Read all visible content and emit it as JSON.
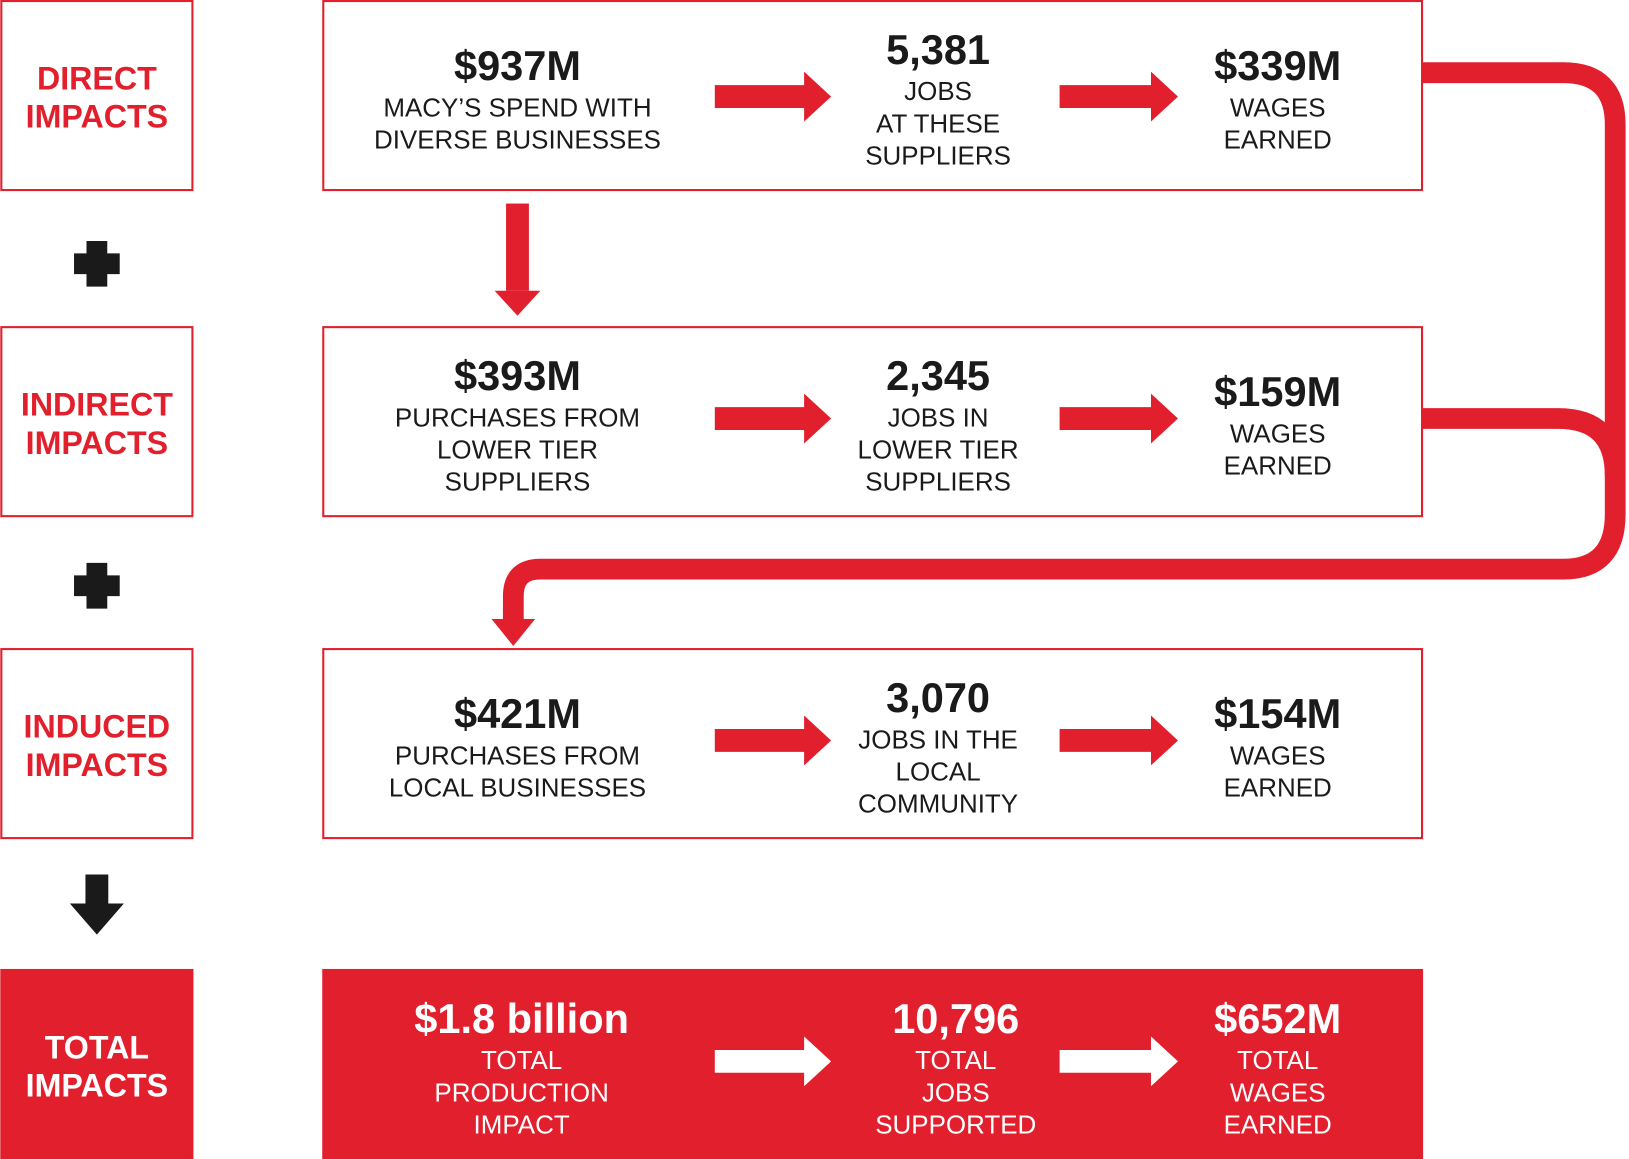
{
  "rows": [
    {
      "label": [
        "DIRECT",
        "IMPACTS"
      ],
      "items": [
        {
          "value": "$937M",
          "lines": [
            "MACY’S SPEND WITH",
            "DIVERSE BUSINESSES"
          ]
        },
        {
          "value": "5,381",
          "lines": [
            "JOBS",
            "AT THESE",
            "SUPPLIERS"
          ]
        },
        {
          "value": "$339M",
          "lines": [
            "WAGES",
            "EARNED"
          ]
        }
      ]
    },
    {
      "label": [
        "INDIRECT",
        "IMPACTS"
      ],
      "items": [
        {
          "value": "$393M",
          "lines": [
            "PURCHASES FROM",
            "LOWER TIER",
            "SUPPLIERS"
          ]
        },
        {
          "value": "2,345",
          "lines": [
            "JOBS IN",
            "LOWER TIER",
            "SUPPLIERS"
          ]
        },
        {
          "value": "$159M",
          "lines": [
            "WAGES",
            "EARNED"
          ]
        }
      ]
    },
    {
      "label": [
        "INDUCED",
        "IMPACTS"
      ],
      "items": [
        {
          "value": "$421M",
          "lines": [
            "PURCHASES FROM",
            "LOCAL BUSINESSES"
          ]
        },
        {
          "value": "3,070",
          "lines": [
            "JOBS IN THE",
            "LOCAL",
            "COMMUNITY"
          ]
        },
        {
          "value": "$154M",
          "lines": [
            "WAGES",
            "EARNED"
          ]
        }
      ]
    },
    {
      "label": [
        "TOTAL",
        "IMPACTS"
      ],
      "items": [
        {
          "value": "$1.8 billion",
          "lines": [
            "TOTAL",
            "PRODUCTION",
            "IMPACT"
          ]
        },
        {
          "value": "10,796",
          "lines": [
            "TOTAL",
            "JOBS",
            "SUPPORTED"
          ]
        },
        {
          "value": "$652M",
          "lines": [
            "TOTAL",
            "WAGES",
            "EARNED"
          ]
        }
      ]
    }
  ]
}
